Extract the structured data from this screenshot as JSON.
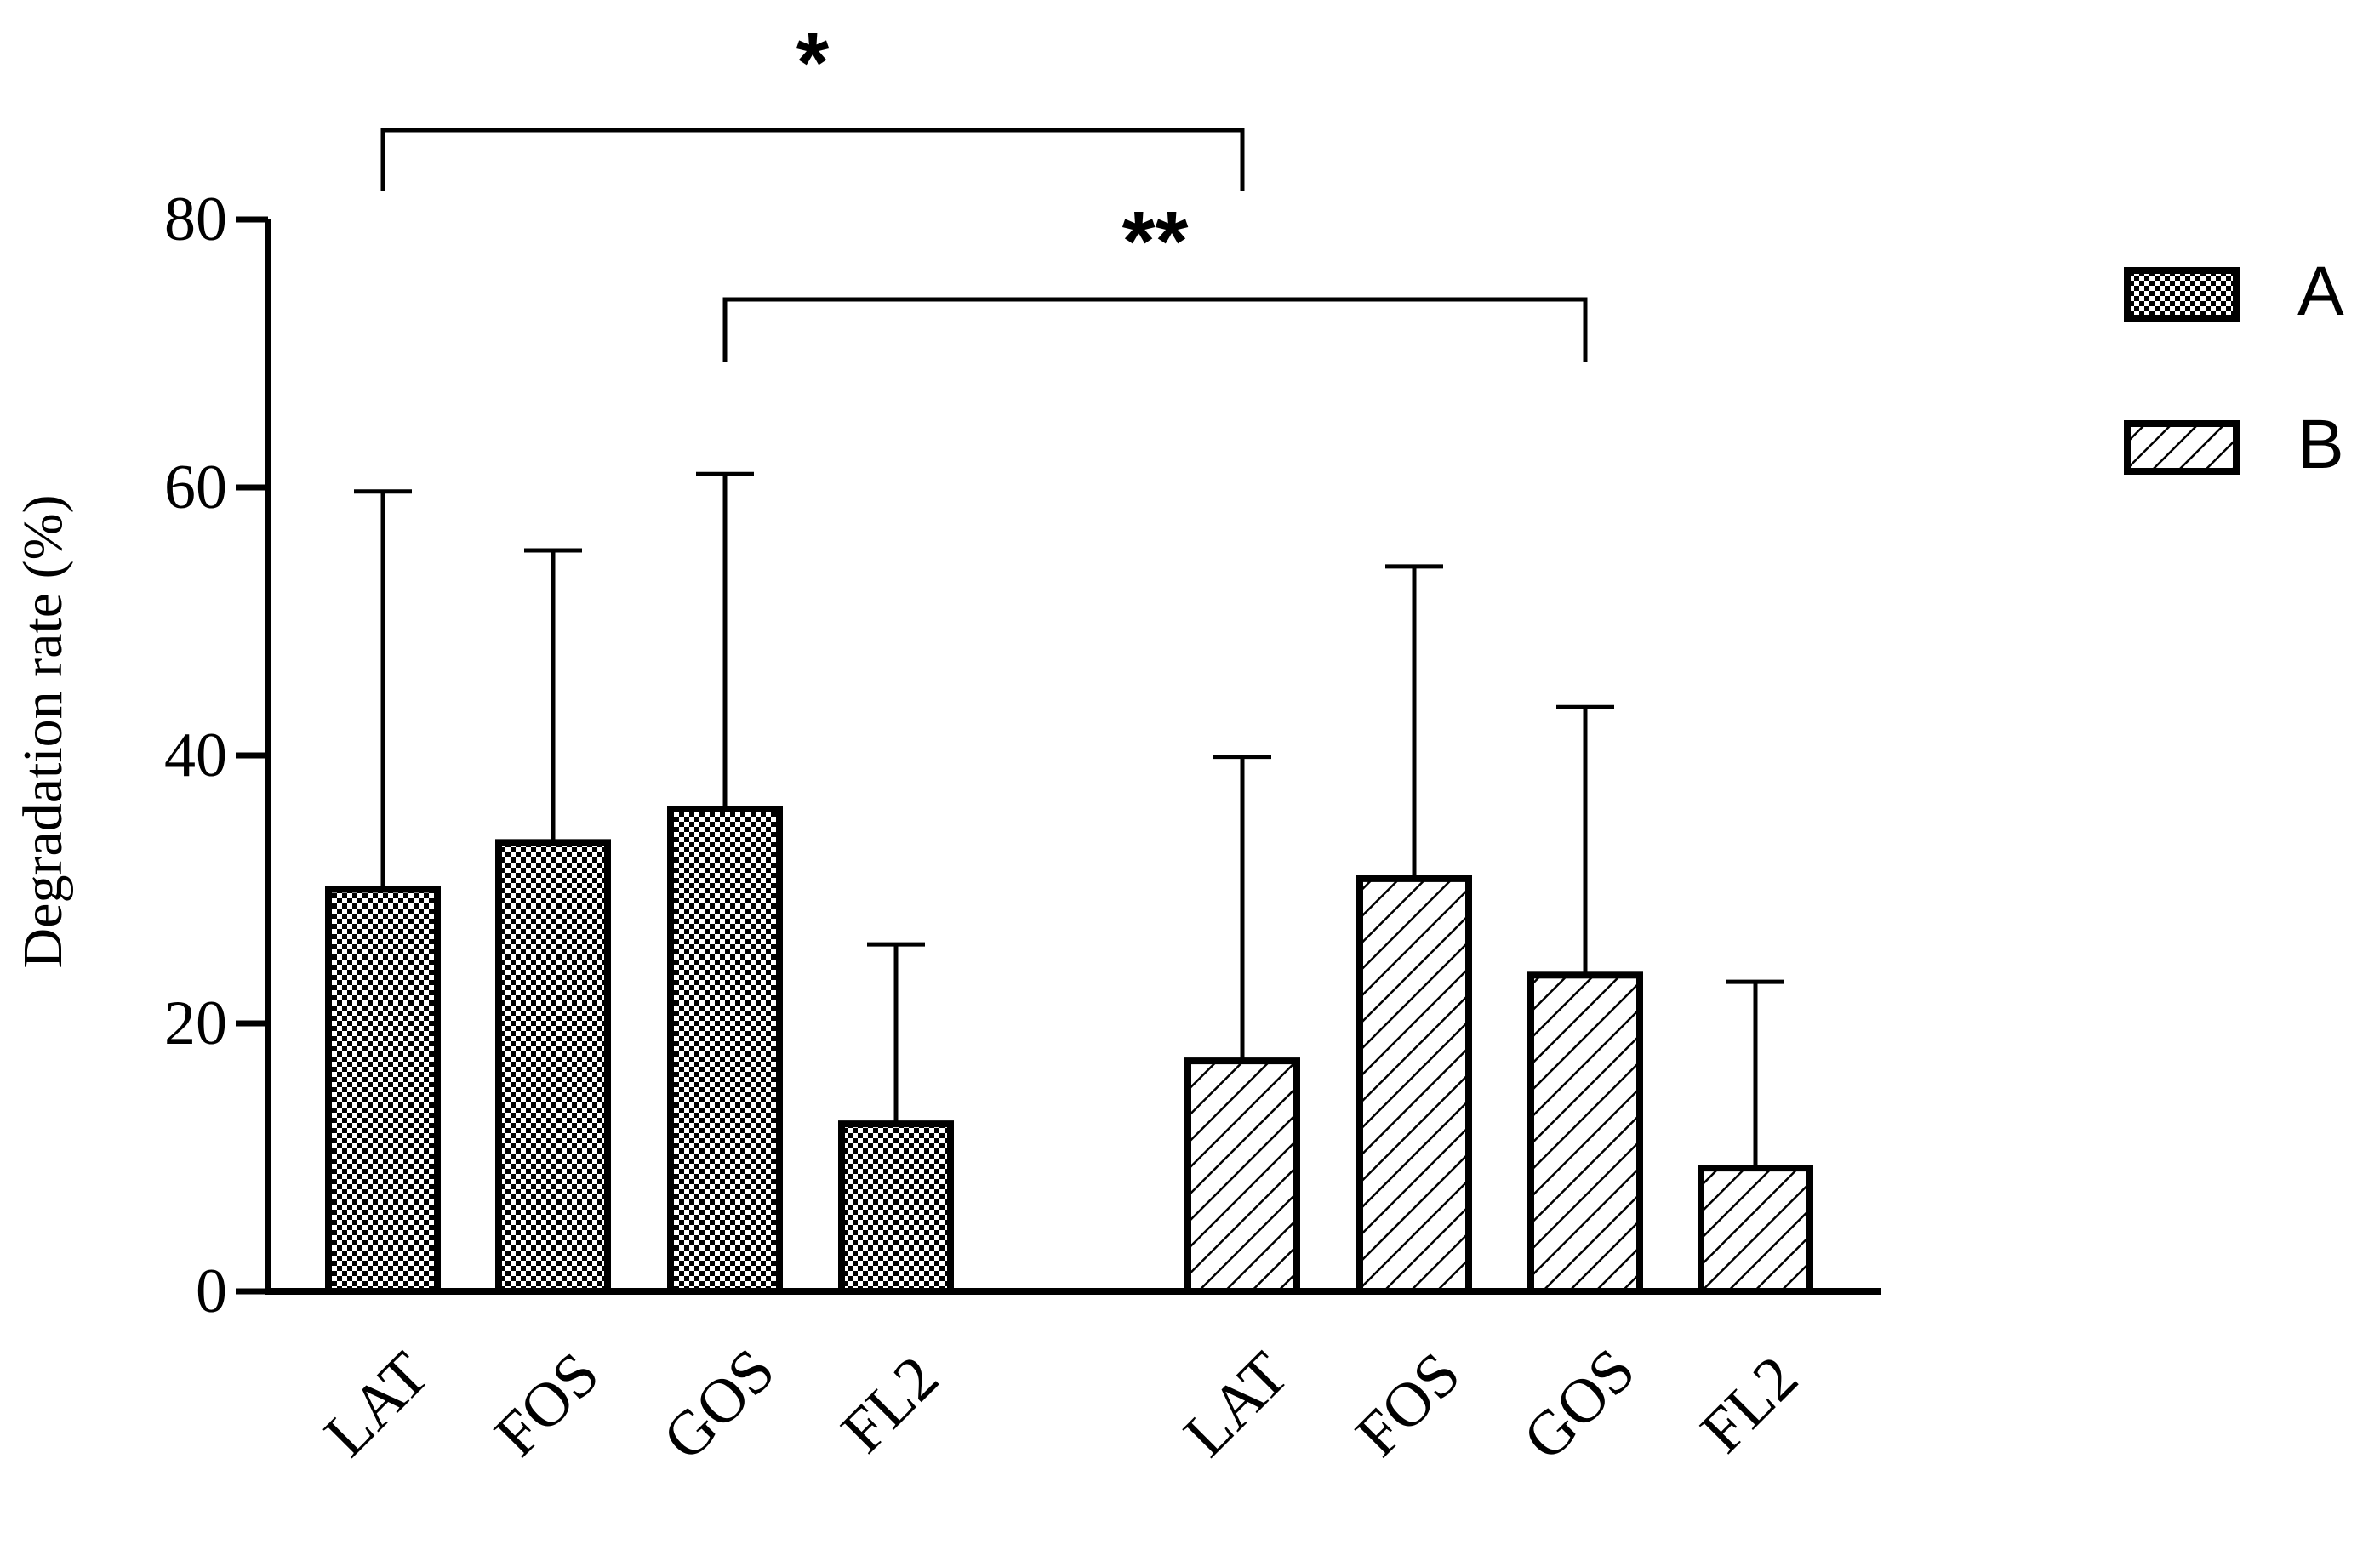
{
  "chart_data": {
    "type": "bar",
    "ylabel": "Degradation rate (%)",
    "ylim": [
      0,
      80
    ],
    "yticks": [
      0,
      20,
      40,
      60,
      80
    ],
    "grid": false,
    "legend_position": "right",
    "colors": {
      "bar_fill": "#ffffff",
      "stroke": "#000000"
    },
    "groups": [
      {
        "name": "A",
        "pattern": "checker",
        "categories": [
          "LAT",
          "FOS",
          "GOS",
          "FL2"
        ],
        "values": [
          30.0,
          33.5,
          36.0,
          12.5
        ],
        "error_upper": [
          59.7,
          55.3,
          61.0,
          25.9
        ]
      },
      {
        "name": "B",
        "pattern": "diagonal-hatch",
        "categories": [
          "LAT",
          "FOS",
          "GOS",
          "FL2"
        ],
        "values": [
          17.2,
          30.8,
          23.6,
          9.2
        ],
        "error_upper": [
          39.9,
          54.1,
          43.6,
          23.1
        ]
      }
    ],
    "significance": [
      {
        "label": "*",
        "from": "A.LAT",
        "to": "B.LAT"
      },
      {
        "label": "**",
        "from": "A.GOS",
        "to": "B.GOS"
      }
    ]
  }
}
